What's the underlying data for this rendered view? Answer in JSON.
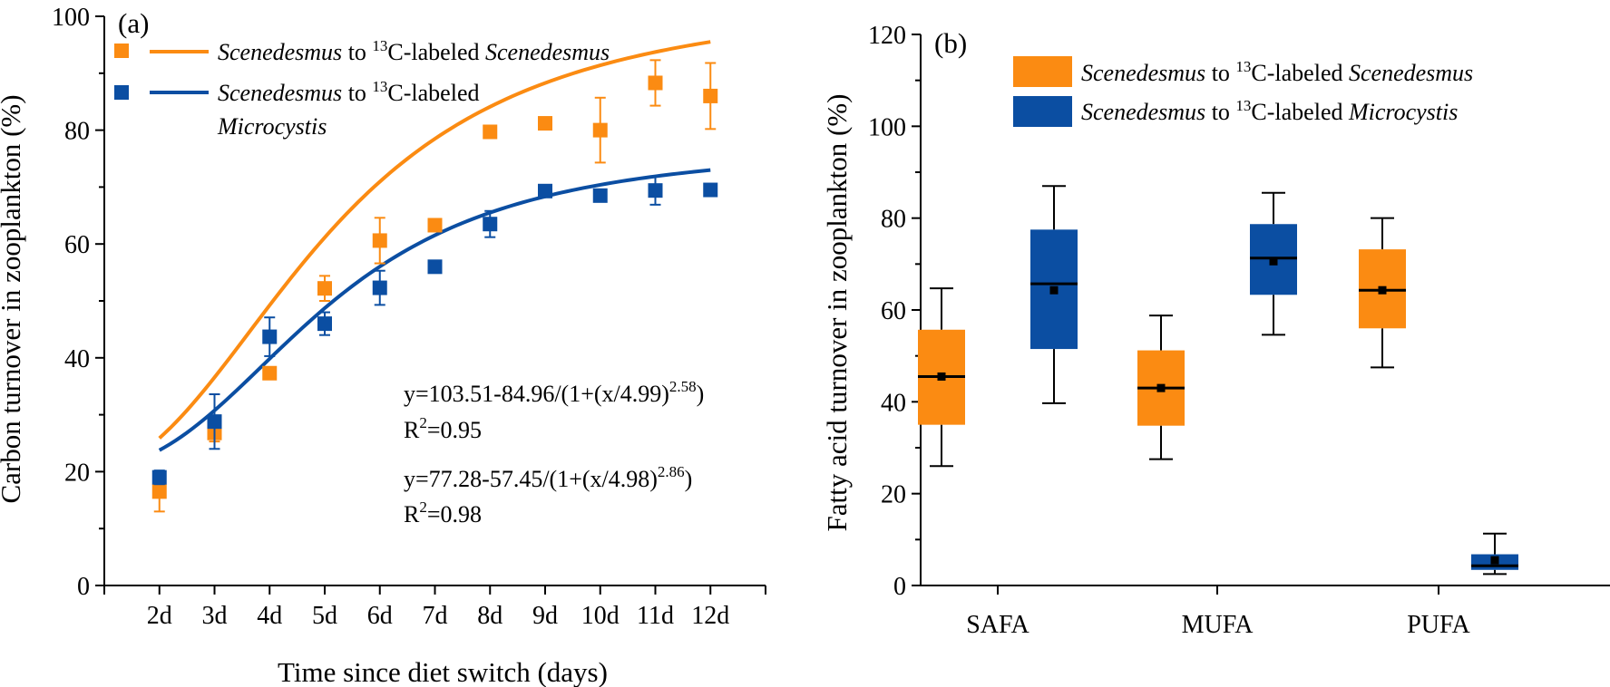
{
  "colors": {
    "orange": "#FB8B12",
    "blue": "#0B4EA2",
    "orange_text": "#F39200",
    "blue_text": "#1F5DA8"
  },
  "chart_data": [
    {
      "type": "scatter",
      "panel": "(a)",
      "xlabel": "Time since diet switch (days)",
      "ylabel": "Carbon turnover in zooplankton (%)",
      "ylim": [
        0,
        100
      ],
      "y_ticks": [
        "0",
        "20",
        "40",
        "60",
        "80",
        "100"
      ],
      "categories": [
        "2d",
        "3d",
        "4d",
        "5d",
        "6d",
        "7d",
        "8d",
        "9d",
        "10d",
        "11d",
        "12d"
      ],
      "x": [
        2,
        3,
        4,
        5,
        6,
        7,
        8,
        9,
        10,
        11,
        12
      ],
      "x_range": [
        1,
        13
      ],
      "series": [
        {
          "name_italic": "Scenedesmus",
          "name_mid": " to ",
          "name_sup": "13",
          "name_tail": "C-labeled ",
          "name_italic2": "Scenedesmus",
          "color": "#FB8B12",
          "values": [
            16.5,
            26.8,
            37.3,
            52.2,
            60.6,
            63.3,
            79.7,
            81.2,
            80.0,
            88.3,
            86.0
          ],
          "error": [
            3.5,
            1.5,
            0.8,
            2.2,
            4.0,
            0,
            0,
            0,
            5.7,
            4.0,
            5.8
          ],
          "fit": {
            "a": 103.51,
            "b": 84.96,
            "x0": 4.99,
            "p": 2.58
          },
          "equation_main": "y=103.51-84.96/(1+(x/4.99)",
          "equation_exp": "2.58",
          "equation_close": ")",
          "r2_prefix": "R",
          "r2_sup": "2",
          "r2_value": "=0.95"
        },
        {
          "name_italic": "Scenedesmus",
          "name_mid": " to ",
          "name_sup": "13",
          "name_tail": "C-labeled",
          "name_line2_italic": "Microcystis",
          "color": "#0B4EA2",
          "values": [
            19.0,
            28.8,
            43.7,
            46.0,
            52.3,
            56.0,
            63.5,
            69.3,
            68.5,
            69.4,
            69.5
          ],
          "error": [
            1.2,
            4.8,
            3.4,
            2.0,
            3.0,
            0,
            2.3,
            0,
            0,
            2.5,
            0
          ],
          "fit": {
            "a": 77.28,
            "b": 57.45,
            "x0": 4.98,
            "p": 2.86
          },
          "equation_main": "y=77.28-57.45/(1+(x/4.98)",
          "equation_exp": "2.86",
          "equation_close": ")",
          "r2_prefix": "R",
          "r2_sup": "2",
          "r2_value": "=0.98"
        }
      ]
    },
    {
      "type": "box",
      "panel": "(b)",
      "xlabel": "",
      "ylabel": "Fatty acid turnover in zooplankton (%)",
      "ylim": [
        0,
        120
      ],
      "y_ticks": [
        "0",
        "20",
        "40",
        "60",
        "80",
        "100",
        "120"
      ],
      "categories": [
        "SAFA",
        "MUFA",
        "PUFA"
      ],
      "series": [
        {
          "name_italic": "Scenedesmus",
          "name_mid": " to ",
          "name_sup": "13",
          "name_tail": "C-labeled ",
          "name_italic2": "Scenedesmus",
          "color": "#FB8B12",
          "boxes": [
            {
              "min": 26,
              "q1": 35,
              "median": 45.5,
              "mean": 45.5,
              "q3": 55.7,
              "max": 64.7
            },
            {
              "min": 27.5,
              "q1": 34.8,
              "median": 43,
              "mean": 43,
              "q3": 51.2,
              "max": 58.8
            },
            {
              "min": 47.5,
              "q1": 56,
              "median": 64.3,
              "mean": 64.3,
              "q3": 73.2,
              "max": 80
            }
          ]
        },
        {
          "name_italic": "Scenedesmus",
          "name_mid": " to ",
          "name_sup": "13",
          "name_tail": "C-labeled ",
          "name_italic2": "Microcystis",
          "color": "#0B4EA2",
          "boxes": [
            {
              "min": 39.7,
              "q1": 51.5,
              "median": 65.7,
              "mean": 64.3,
              "q3": 77.5,
              "max": 87
            },
            {
              "min": 54.6,
              "q1": 63.3,
              "median": 71.3,
              "mean": 70.6,
              "q3": 78.7,
              "max": 85.5
            },
            {
              "min": 2.5,
              "q1": 3.4,
              "median": 4.3,
              "mean": 5.5,
              "q3": 6.8,
              "max": 11.3
            }
          ]
        }
      ]
    }
  ]
}
